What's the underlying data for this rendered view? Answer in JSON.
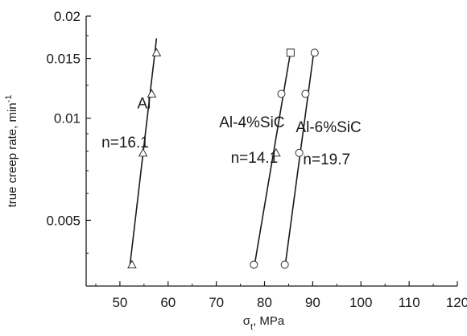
{
  "chart_data": {
    "type": "scatter",
    "xlabel": "σ",
    "xlabel_sub": "t",
    "xlabel_unit": ", MPa",
    "ylabel": "true creep rate, min",
    "ylabel_sup": "-1",
    "xlim": [
      43,
      120
    ],
    "ylim": [
      0.0032,
      0.02
    ],
    "yscale": "log",
    "grid": false,
    "x_ticks": [
      50,
      60,
      70,
      80,
      90,
      100,
      110,
      120
    ],
    "x_tick_labels": [
      "50",
      "60",
      "70",
      "80",
      "90",
      "100",
      "110",
      "120"
    ],
    "y_ticks": [
      0.005,
      0.01,
      0.015,
      0.02
    ],
    "y_tick_labels": [
      "0.005",
      "0.01",
      "0.015",
      "0.02"
    ],
    "series": [
      {
        "marker": "triangle",
        "points": [
          [
            52.5,
            0.0037
          ],
          [
            54.8,
            0.0079
          ],
          [
            56.6,
            0.0118
          ],
          [
            57.6,
            0.0156
          ]
        ],
        "fit": [
          [
            52.1,
            0.0037
          ],
          [
            57.6,
            0.0172
          ]
        ]
      },
      {
        "marker": "mixed",
        "markers": [
          "circle",
          "triangle",
          "circle",
          "square"
        ],
        "points": [
          [
            77.8,
            0.0037
          ],
          [
            82.4,
            0.0079
          ],
          [
            83.5,
            0.0118
          ],
          [
            85.4,
            0.0156
          ]
        ],
        "fit": [
          [
            77.8,
            0.0036
          ],
          [
            85.4,
            0.0157
          ]
        ]
      },
      {
        "marker": "mixed",
        "markers": [
          "circle",
          "circle",
          "circle",
          "circle"
        ],
        "points": [
          [
            84.2,
            0.0037
          ],
          [
            87.2,
            0.0079
          ],
          [
            88.5,
            0.0118
          ],
          [
            90.4,
            0.0156
          ]
        ],
        "fit": [
          [
            84.2,
            0.0036
          ],
          [
            90.2,
            0.0156
          ]
        ]
      }
    ],
    "annotations": [
      {
        "text": "Al",
        "x": 53.6,
        "y": 0.0107
      },
      {
        "text": "n=16.1",
        "x": 46.2,
        "y": 0.0082
      },
      {
        "text": "Al-4%SiC",
        "x": 70.6,
        "y": 0.0094
      },
      {
        "text": "n=14.1",
        "x": 73.0,
        "y": 0.0074
      },
      {
        "text": "Al-6%SiC",
        "x": 86.5,
        "y": 0.0091
      },
      {
        "text": "n=19.7",
        "x": 88.0,
        "y": 0.0073
      }
    ]
  }
}
